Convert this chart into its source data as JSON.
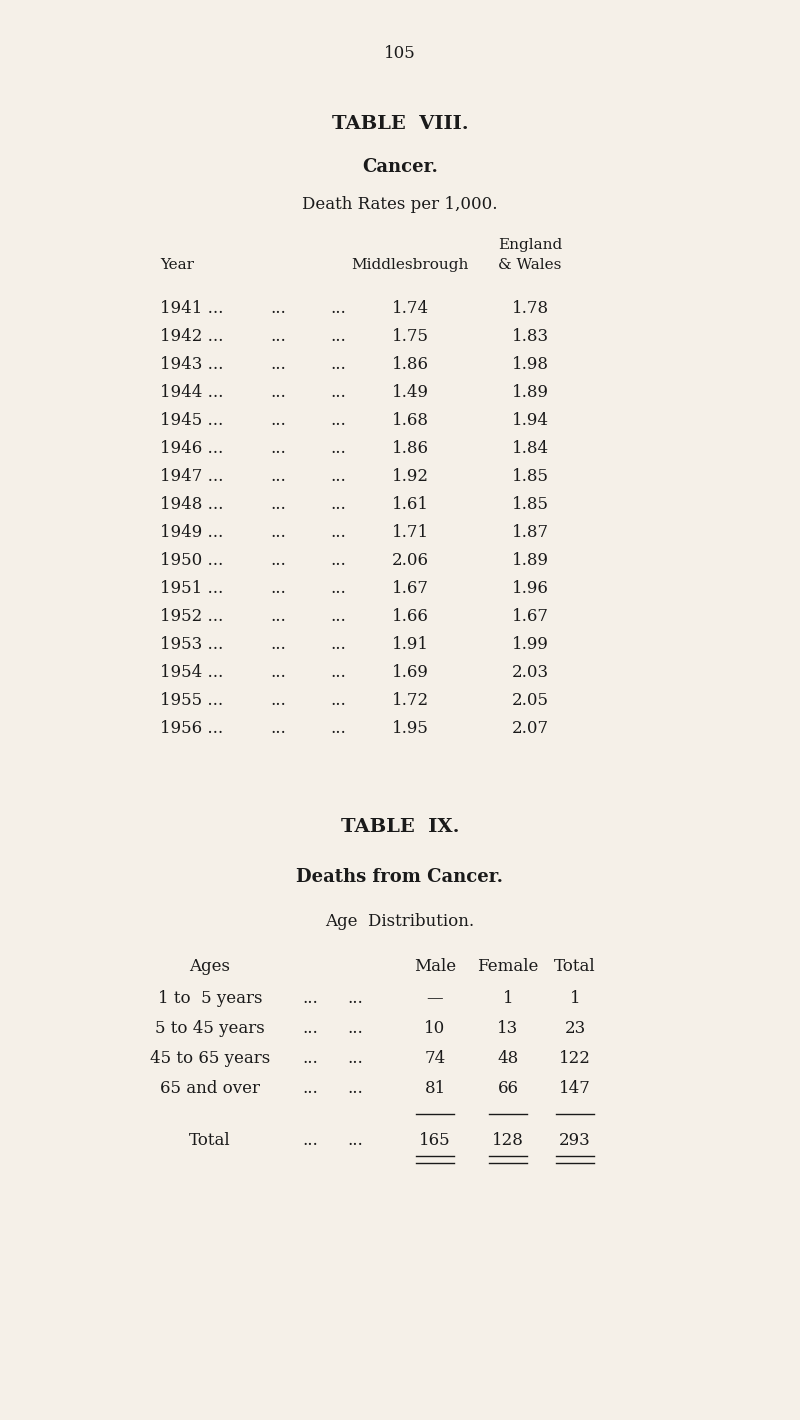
{
  "page_number": "105",
  "bg_color": "#f5f0e8",
  "text_color": "#1a1a1a",
  "table8_title": "TABLE  VIII.",
  "table8_subtitle": "Cancer.",
  "table8_subsubtitle": "Death Rates per 1,000.",
  "table8_col_year": "Year",
  "table8_col_mid": "Middlesbrough",
  "table8_col_eng_line1": "England",
  "table8_col_eng_line2": "& Wales",
  "table8_years": [
    1941,
    1942,
    1943,
    1944,
    1945,
    1946,
    1947,
    1948,
    1949,
    1950,
    1951,
    1952,
    1953,
    1954,
    1955,
    1956
  ],
  "table8_middlesbrough": [
    1.74,
    1.75,
    1.86,
    1.49,
    1.68,
    1.86,
    1.92,
    1.61,
    1.71,
    2.06,
    1.67,
    1.66,
    1.91,
    1.69,
    1.72,
    1.95
  ],
  "table8_england_wales": [
    1.78,
    1.83,
    1.98,
    1.89,
    1.94,
    1.84,
    1.85,
    1.85,
    1.87,
    1.89,
    1.96,
    1.67,
    1.99,
    2.03,
    2.05,
    2.07
  ],
  "table9_title": "TABLE  IX.",
  "table9_subtitle": "Deaths from Cancer.",
  "table9_subsubtitle": "Age  Distribution.",
  "table9_col_ages": "Ages",
  "table9_col_male": "Male",
  "table9_col_female": "Female",
  "table9_col_total": "Total",
  "table9_age_labels": [
    "1 to  5 years",
    "5 to 45 years",
    "45 to 65 years",
    "65 and over"
  ],
  "table9_male": [
    "—",
    "10",
    "74",
    "81"
  ],
  "table9_female": [
    "1",
    "13",
    "48",
    "66"
  ],
  "table9_total": [
    "1",
    "23",
    "122",
    "147"
  ],
  "table9_total_row_label": "Total",
  "table9_total_male": "165",
  "table9_total_female": "128",
  "table9_total_total": "293",
  "dots3": "...",
  "dots_sep": "     ...     ...     ..."
}
